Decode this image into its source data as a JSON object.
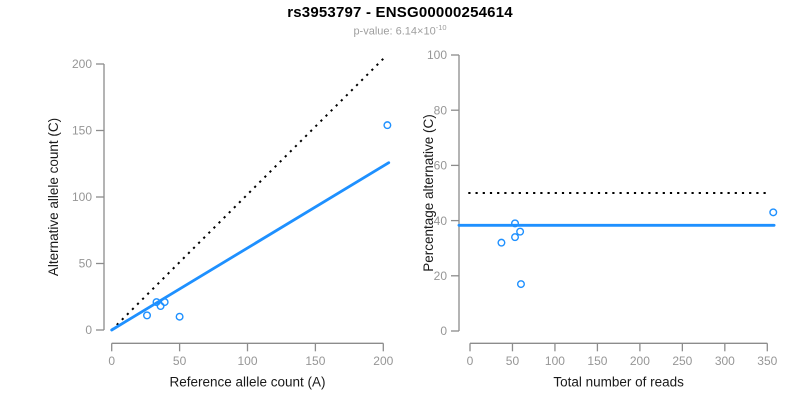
{
  "header": {
    "title": "rs3953797 - ENSG00000254614",
    "pvalue_prefix": "p-value: 6.14×10",
    "pvalue_exponent": "-10"
  },
  "style": {
    "accent_blue": "#1E90FF",
    "dotted_line_color": "#000000",
    "axis_color": "#8c8c8c",
    "tick_label_color": "#969696",
    "axis_title_color": "#1a1a1a",
    "subtitle_color": "#9e9e9e",
    "background": "#ffffff"
  },
  "chart_data": [
    {
      "type": "scatter",
      "name": "allele-counts-panel",
      "xlabel": "Reference allele count (A)",
      "ylabel": "Alternative allele count (C)",
      "xlim": [
        0,
        200
      ],
      "ylim": [
        0,
        200
      ],
      "xticks": [
        0,
        50,
        100,
        150,
        200
      ],
      "yticks": [
        0,
        50,
        100,
        150,
        200
      ],
      "grid": false,
      "legend": false,
      "point_style": "open-circle",
      "point_color": "#1E90FF",
      "points": [
        [
          33,
          21
        ],
        [
          36,
          18
        ],
        [
          39,
          21
        ],
        [
          26,
          11
        ],
        [
          50,
          10
        ],
        [
          203,
          154
        ]
      ],
      "lines": [
        {
          "name": "identity-line",
          "style": "dotted",
          "color": "#000000",
          "x": [
            0,
            202
          ],
          "y": [
            0,
            206
          ]
        },
        {
          "name": "fit-line",
          "style": "solid",
          "color": "#1E90FF",
          "x": [
            0,
            204
          ],
          "y": [
            0,
            125.8
          ]
        }
      ]
    },
    {
      "type": "scatter",
      "name": "percentage-panel",
      "xlabel": "Total number of reads",
      "ylabel": "Percentage alternative (C)",
      "xlim": [
        0,
        350
      ],
      "ylim": [
        0,
        100
      ],
      "xticks": [
        0,
        50,
        100,
        150,
        200,
        250,
        300,
        350
      ],
      "yticks": [
        0,
        20,
        40,
        60,
        80,
        100
      ],
      "grid": false,
      "legend": false,
      "point_style": "open-circle",
      "point_color": "#1E90FF",
      "points": [
        [
          53,
          39
        ],
        [
          59,
          36
        ],
        [
          53,
          34
        ],
        [
          37,
          32
        ],
        [
          60,
          17
        ],
        [
          357,
          43
        ]
      ],
      "lines": [
        {
          "name": "expected-50pct-line",
          "style": "dotted",
          "color": "#000000",
          "x": [
            -2,
            351
          ],
          "y": [
            50,
            50
          ]
        },
        {
          "name": "fit-line",
          "style": "solid",
          "color": "#1E90FF",
          "x": [
            -13,
            358
          ],
          "y": [
            38.3,
            38.3
          ]
        }
      ]
    }
  ]
}
